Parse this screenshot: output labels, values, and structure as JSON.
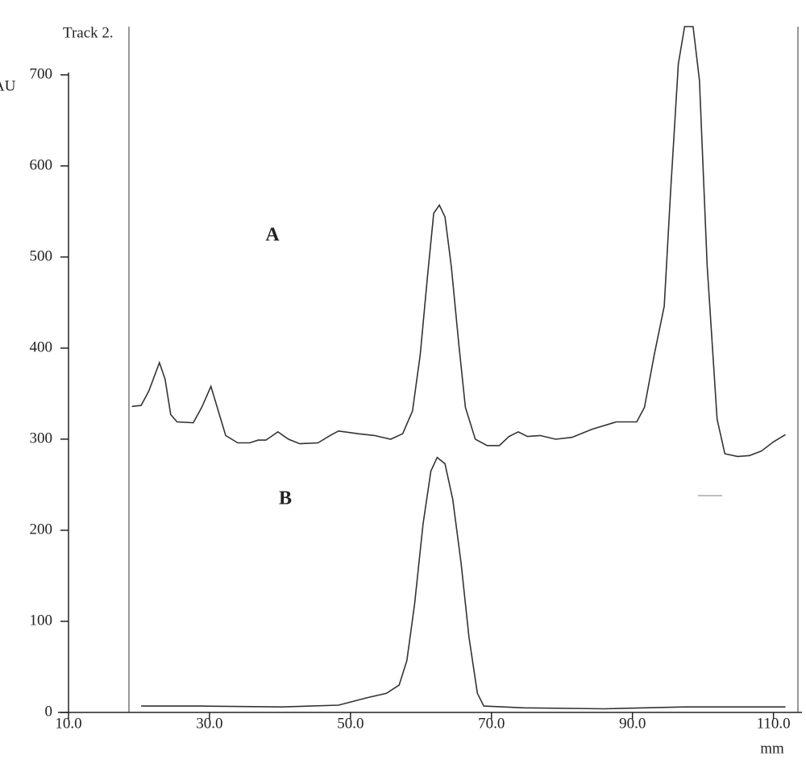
{
  "chart_data": {
    "type": "line",
    "title": "Track 2.",
    "ylabel": "AU",
    "xlabel": "mm",
    "xlim": [
      10,
      113.7
    ],
    "ylim": [
      0,
      753
    ],
    "xticks": [
      {
        "value": 10,
        "label": "10.0"
      },
      {
        "value": 30,
        "label": "30.0"
      },
      {
        "value": 50,
        "label": "50.0"
      },
      {
        "value": 70,
        "label": "70.0"
      },
      {
        "value": 90,
        "label": "90.0"
      },
      {
        "value": 110,
        "label": "110.0"
      }
    ],
    "yticks": [
      0,
      100,
      200,
      300,
      400,
      500,
      600,
      700
    ],
    "grid": false,
    "series": [
      {
        "name": "A",
        "color": "#333333",
        "x": [
          19.0,
          20.3,
          21.4,
          22.9,
          23.7,
          24.5,
          25.4,
          27.7,
          28.9,
          30.2,
          31.1,
          32.3,
          34.0,
          35.7,
          36.9,
          38.0,
          39.7,
          41.2,
          42.8,
          45.4,
          47.1,
          48.3,
          51.1,
          53.4,
          55.7,
          57.4,
          58.8,
          59.9,
          60.9,
          61.8,
          62.6,
          63.4,
          64.3,
          65.4,
          66.3,
          67.7,
          69.4,
          71.1,
          72.5,
          73.8,
          75.1,
          76.9,
          79.1,
          81.4,
          84.3,
          87.7,
          90.6,
          91.7,
          93.1,
          94.5,
          95.4,
          96.5,
          97.4,
          98.6,
          99.5,
          100.6,
          102.0,
          103.1,
          104.9,
          106.6,
          108.3,
          110.0,
          111.7
        ],
        "values": [
          336,
          337,
          353,
          384,
          366,
          327,
          319,
          318,
          335,
          358,
          335,
          304,
          296,
          296,
          299,
          299,
          308,
          300,
          295,
          296,
          304,
          309,
          306,
          304,
          300,
          306,
          331,
          393,
          477,
          548,
          557,
          544,
          490,
          402,
          335,
          300,
          293,
          293,
          303,
          308,
          303,
          304,
          300,
          302,
          311,
          319,
          319,
          335,
          393,
          446,
          570,
          712,
          753,
          753,
          694,
          490,
          322,
          284,
          281,
          282,
          287,
          297,
          305
        ]
      },
      {
        "name": "B",
        "color": "#333333",
        "x": [
          20.3,
          28.9,
          40.3,
          48.3,
          52.3,
          55.1,
          56.9,
          58.0,
          59.1,
          60.3,
          61.4,
          62.3,
          63.4,
          64.5,
          65.7,
          66.8,
          68.0,
          68.9,
          74.6,
          86.0,
          97.4,
          111.7
        ],
        "values": [
          7,
          7,
          6,
          8,
          16,
          21,
          30,
          57,
          119,
          207,
          265,
          280,
          273,
          234,
          163,
          83,
          21,
          7,
          5,
          4,
          6,
          6
        ]
      }
    ]
  }
}
